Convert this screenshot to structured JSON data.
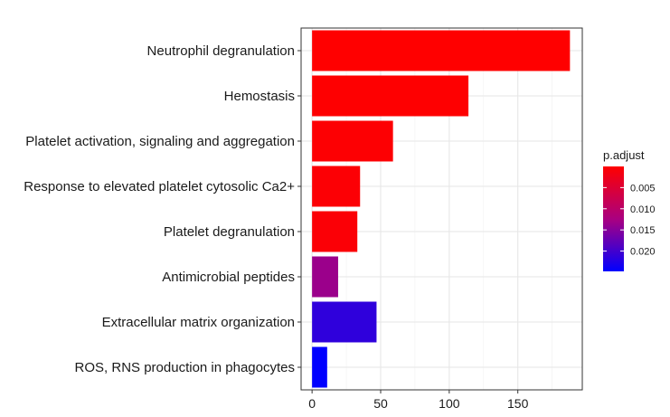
{
  "chart_data": {
    "type": "bar",
    "orientation": "horizontal",
    "categories": [
      "Neutrophil degranulation",
      "Hemostasis",
      "Platelet activation, signaling and aggregation",
      "Response to elevated platelet cytosolic Ca2+",
      "Platelet degranulation ",
      "Antimicrobial peptides",
      "Extracellular matrix organization",
      "ROS, RNS production in phagocytes"
    ],
    "values": [
      188,
      114,
      59,
      35,
      33,
      19,
      47,
      11
    ],
    "p_adjust": [
      2e-05,
      8e-05,
      0.0003,
      0.0005,
      0.0006,
      0.0135,
      0.0214,
      0.0248
    ],
    "xlim": [
      -8,
      197
    ],
    "xticks": [
      0,
      50,
      100,
      150
    ],
    "grid": true,
    "legend": {
      "title": "p.adjust",
      "placement": "right",
      "range": [
        0.0,
        0.0248
      ],
      "ticks": [
        {
          "value": 0.005,
          "label": "0.005"
        },
        {
          "value": 0.01,
          "label": "0.010"
        },
        {
          "value": 0.015,
          "label": "0.015"
        },
        {
          "value": 0.02,
          "label": "0.020"
        }
      ],
      "color_low": "#ff0000",
      "color_high": "#0000ff"
    }
  }
}
